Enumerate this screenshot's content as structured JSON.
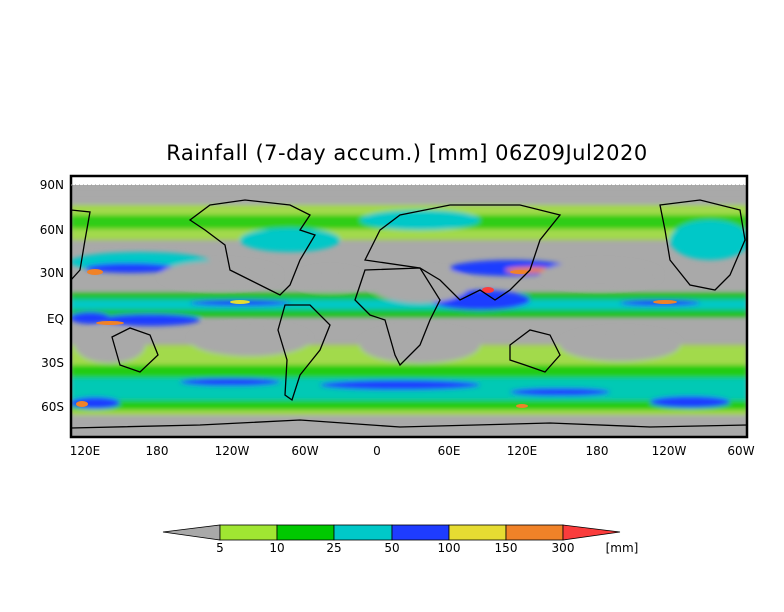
{
  "title": "Rainfall (7-day accum.) [mm] 06Z09Jul2020",
  "map": {
    "lat_labels": [
      "90N",
      "60N",
      "30N",
      "EQ",
      "30S",
      "60S"
    ],
    "lon_labels": [
      "120E",
      "180",
      "120W",
      "60W",
      "0",
      "60E",
      "120E",
      "180",
      "120W",
      "60W"
    ],
    "background_color": "#a9a9a9"
  },
  "colorbar": {
    "unit": "[mm]",
    "levels": [
      "5",
      "10",
      "25",
      "50",
      "100",
      "150",
      "300"
    ],
    "colors": [
      "#a9a9a9",
      "#a0e632",
      "#00c800",
      "#00c8c8",
      "#1e3cff",
      "#e6dc32",
      "#f08228",
      "#fa3c3c"
    ]
  }
}
